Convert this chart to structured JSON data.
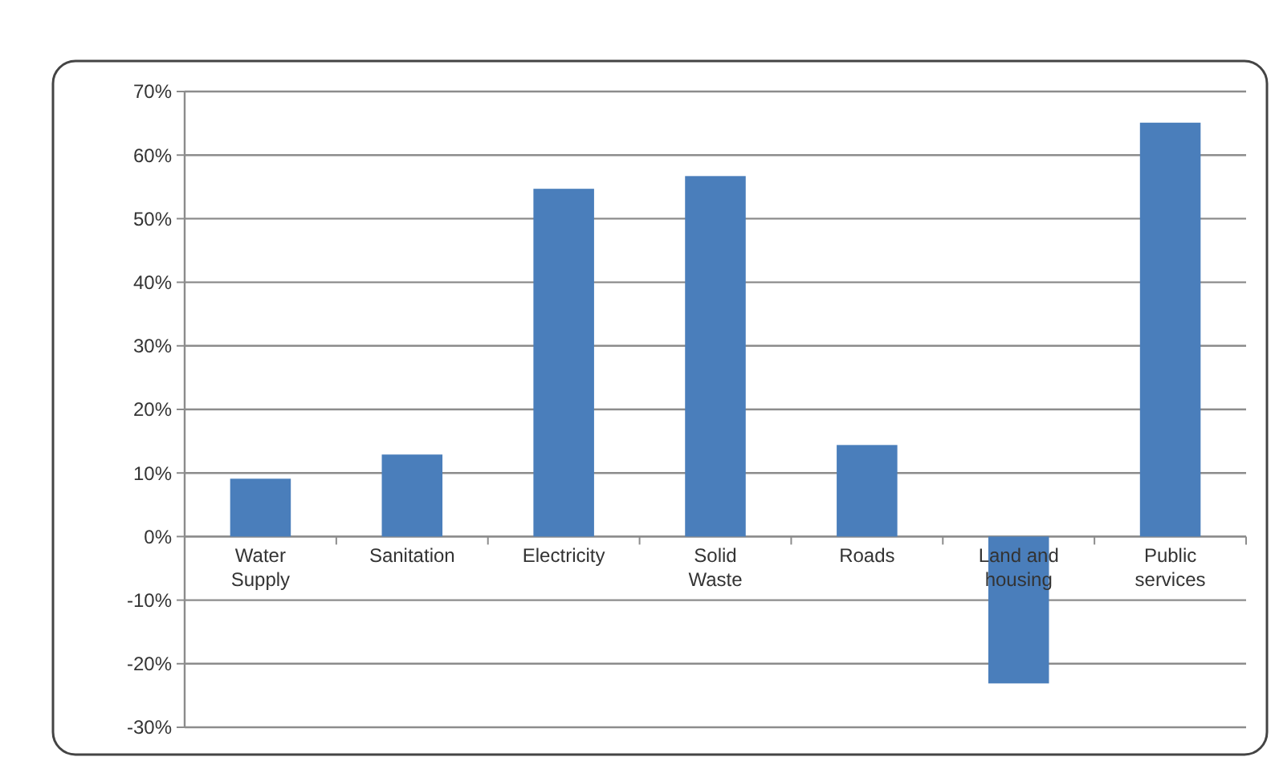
{
  "chart_data": {
    "type": "bar",
    "categories": [
      "Water Supply",
      "Sanitation",
      "Electricity",
      "Solid Waste",
      "Roads",
      "Land and housing",
      "Public services"
    ],
    "values": [
      9.1,
      12.9,
      54.7,
      56.7,
      14.4,
      -23.1,
      65.1
    ],
    "color": "#4a7ebb",
    "ylim": [
      -30,
      70
    ],
    "yticks": [
      {
        "value": -30,
        "label": "-30%"
      },
      {
        "value": -20,
        "label": "-20%"
      },
      {
        "value": -10,
        "label": "-10%"
      },
      {
        "value": 0,
        "label": "0%"
      },
      {
        "value": 10,
        "label": "10%"
      },
      {
        "value": 20,
        "label": "20%"
      },
      {
        "value": 30,
        "label": "30%"
      },
      {
        "value": 40,
        "label": "40%"
      },
      {
        "value": 50,
        "label": "50%"
      },
      {
        "value": 60,
        "label": "60%"
      },
      {
        "value": 70,
        "label": "70%"
      }
    ],
    "grid": "y"
  }
}
